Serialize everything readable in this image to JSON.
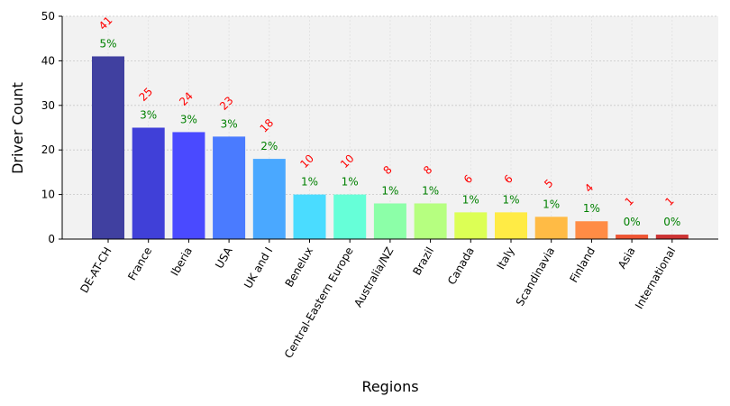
{
  "chart_data": {
    "type": "bar",
    "title": "",
    "xlabel": "Regions",
    "ylabel": "Driver Count",
    "ylim": [
      0,
      50
    ],
    "yticks": [
      0,
      10,
      20,
      30,
      40,
      50
    ],
    "grid": true,
    "categories": [
      "DE-AT-CH",
      "France",
      "Iberia",
      "USA",
      "UK and I",
      "Benelux",
      "Central-Eastern Europe",
      "Australia/NZ",
      "Brazil",
      "Canada",
      "Italy",
      "Scandinavia",
      "Finland",
      "Asia",
      "International"
    ],
    "values": [
      41,
      25,
      24,
      23,
      18,
      10,
      10,
      8,
      8,
      6,
      6,
      5,
      4,
      1,
      1
    ],
    "count_labels": [
      "41",
      "25",
      "24",
      "23",
      "18",
      "10",
      "10",
      "8",
      "8",
      "6",
      "6",
      "5",
      "4",
      "1",
      "1"
    ],
    "percent_labels": [
      "5%",
      "3%",
      "3%",
      "3%",
      "2%",
      "1%",
      "1%",
      "1%",
      "1%",
      "1%",
      "1%",
      "1%",
      "1%",
      "0%",
      "0%"
    ],
    "colors": [
      "#4040a0",
      "#4040d8",
      "#4a4aff",
      "#4a7bff",
      "#4aa8ff",
      "#4adcff",
      "#66ffd8",
      "#8cffa8",
      "#b6ff80",
      "#dcff55",
      "#ffeb45",
      "#ffbb45",
      "#ff8c45",
      "#ee5533",
      "#cc3333"
    ],
    "count_color": "#ff0000",
    "percent_color": "#008000"
  }
}
